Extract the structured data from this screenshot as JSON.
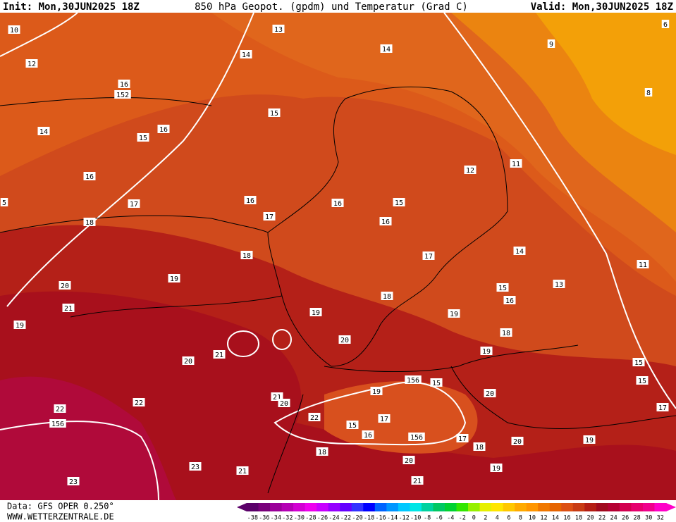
{
  "header": {
    "init": "Init: Mon,30JUN2025 18Z",
    "title": "850 hPa Geopot. (gpdm) und Temperatur (Grad C)",
    "valid": "Valid: Mon,30JUN2025 18Z"
  },
  "footer": {
    "data": "Data: GFS OPER 0.250°",
    "site": "WWW.WETTERZENTRALE.DE"
  },
  "legend": {
    "values": [
      -38,
      -36,
      -34,
      -32,
      -30,
      -28,
      -26,
      -24,
      -22,
      -20,
      -18,
      -16,
      -14,
      -12,
      -10,
      -8,
      -6,
      -4,
      -2,
      0,
      2,
      4,
      6,
      8,
      10,
      12,
      14,
      16,
      18,
      20,
      22,
      24,
      26,
      28,
      30,
      32
    ],
    "colors": [
      "#5a0069",
      "#78007a",
      "#9a0099",
      "#b400b4",
      "#d200d2",
      "#ee00ee",
      "#c800ff",
      "#9600ff",
      "#6400ff",
      "#3232ff",
      "#0000ff",
      "#0064ff",
      "#0096ff",
      "#00c8ff",
      "#00e6e6",
      "#00d2a0",
      "#00c864",
      "#00d232",
      "#32e600",
      "#96f000",
      "#e6f000",
      "#ffe600",
      "#ffc800",
      "#ffaa00",
      "#ff9600",
      "#f07800",
      "#e66400",
      "#dc5014",
      "#c83c14",
      "#b41e14",
      "#a00a1e",
      "#b40032",
      "#d20050",
      "#e6006e",
      "#f0008c",
      "#ff00c8"
    ]
  },
  "contour_labels": [
    10,
    13,
    14,
    14,
    9,
    6,
    12,
    16,
    152,
    8,
    15,
    14,
    16,
    15,
    12,
    11,
    16,
    5,
    17,
    16,
    16,
    15,
    18,
    17,
    16,
    18,
    17,
    14,
    11,
    19,
    20,
    15,
    13,
    21,
    16,
    19,
    18,
    19,
    19,
    18,
    20,
    21,
    19,
    20,
    15,
    15,
    156,
    15,
    20,
    19,
    21,
    20,
    22,
    22,
    17,
    156,
    22,
    15,
    17,
    16,
    156,
    17,
    18,
    20,
    19,
    18,
    20,
    19,
    23,
    21,
    21,
    23
  ]
}
